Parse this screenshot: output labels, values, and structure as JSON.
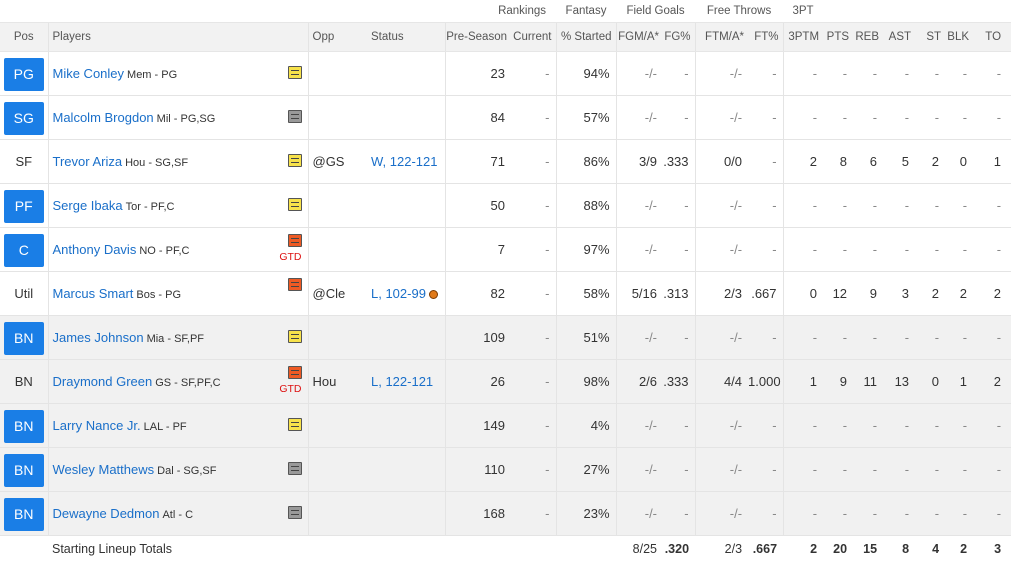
{
  "group_headers": {
    "rankings": "Rankings",
    "fantasy": "Fantasy",
    "field_goals": "Field Goals",
    "free_throws": "Free Throws",
    "three_pt": "3PT"
  },
  "columns": {
    "pos": "Pos",
    "players": "Players",
    "opp": "Opp",
    "status": "Status",
    "preseason": "Pre-Season",
    "current": "Current",
    "pct_started": "% Started",
    "fgma": "FGM/A*",
    "fgpct": "FG%",
    "ftma": "FTM/A*",
    "ftpct": "FT%",
    "threeptm": "3PTM",
    "pts": "PTS",
    "reb": "REB",
    "ast": "AST",
    "st": "ST",
    "blk": "BLK",
    "to": "TO"
  },
  "players": [
    {
      "pos": "PG",
      "pos_button": true,
      "bench": false,
      "name": "Mike Conley",
      "meta": "Mem - PG",
      "note": "yellow-note-icon",
      "gtd": "",
      "opp": "",
      "status": "",
      "game_icon": false,
      "preseason": "23",
      "current": "-",
      "started": "94%",
      "fgma": "-/-",
      "fgpct": "-",
      "ftma": "-/-",
      "ftpct": "-",
      "threeptm": "-",
      "pts": "-",
      "reb": "-",
      "ast": "-",
      "st": "-",
      "blk": "-",
      "to": "-"
    },
    {
      "pos": "SG",
      "pos_button": true,
      "bench": false,
      "name": "Malcolm Brogdon",
      "meta": "Mil - PG,SG",
      "note": "gray-note-icon",
      "gtd": "",
      "opp": "",
      "status": "",
      "game_icon": false,
      "preseason": "84",
      "current": "-",
      "started": "57%",
      "fgma": "-/-",
      "fgpct": "-",
      "ftma": "-/-",
      "ftpct": "-",
      "threeptm": "-",
      "pts": "-",
      "reb": "-",
      "ast": "-",
      "st": "-",
      "blk": "-",
      "to": "-"
    },
    {
      "pos": "SF",
      "pos_button": false,
      "bench": false,
      "name": "Trevor Ariza",
      "meta": "Hou - SG,SF",
      "note": "yellow-note-icon",
      "gtd": "",
      "opp": "@GS",
      "status": "W, 122-121",
      "game_icon": false,
      "preseason": "71",
      "current": "-",
      "started": "86%",
      "fgma": "3/9",
      "fgpct": ".333",
      "ftma": "0/0",
      "ftpct": "-",
      "threeptm": "2",
      "pts": "8",
      "reb": "6",
      "ast": "5",
      "st": "2",
      "blk": "0",
      "to": "1"
    },
    {
      "pos": "PF",
      "pos_button": true,
      "bench": false,
      "name": "Serge Ibaka",
      "meta": "Tor - PF,C",
      "note": "yellow-note-icon",
      "gtd": "",
      "opp": "",
      "status": "",
      "game_icon": false,
      "preseason": "50",
      "current": "-",
      "started": "88%",
      "fgma": "-/-",
      "fgpct": "-",
      "ftma": "-/-",
      "ftpct": "-",
      "threeptm": "-",
      "pts": "-",
      "reb": "-",
      "ast": "-",
      "st": "-",
      "blk": "-",
      "to": "-"
    },
    {
      "pos": "C",
      "pos_button": true,
      "bench": false,
      "name": "Anthony Davis",
      "meta": "NO - PF,C",
      "note": "orange-note-icon",
      "gtd": "GTD",
      "opp": "",
      "status": "",
      "game_icon": false,
      "preseason": "7",
      "current": "-",
      "started": "97%",
      "fgma": "-/-",
      "fgpct": "-",
      "ftma": "-/-",
      "ftpct": "-",
      "threeptm": "-",
      "pts": "-",
      "reb": "-",
      "ast": "-",
      "st": "-",
      "blk": "-",
      "to": "-"
    },
    {
      "pos": "Util",
      "pos_button": false,
      "bench": false,
      "name": "Marcus Smart",
      "meta": "Bos - PG",
      "note": "orange-note-icon",
      "gtd": "",
      "opp": "@Cle",
      "status": "L, 102-99",
      "game_icon": true,
      "preseason": "82",
      "current": "-",
      "started": "58%",
      "fgma": "5/16",
      "fgpct": ".313",
      "ftma": "2/3",
      "ftpct": ".667",
      "threeptm": "0",
      "pts": "12",
      "reb": "9",
      "ast": "3",
      "st": "2",
      "blk": "2",
      "to": "2"
    },
    {
      "pos": "BN",
      "pos_button": true,
      "bench": true,
      "name": "James Johnson",
      "meta": "Mia - SF,PF",
      "note": "yellow-note-icon",
      "gtd": "",
      "opp": "",
      "status": "",
      "game_icon": false,
      "preseason": "109",
      "current": "-",
      "started": "51%",
      "fgma": "-/-",
      "fgpct": "-",
      "ftma": "-/-",
      "ftpct": "-",
      "threeptm": "-",
      "pts": "-",
      "reb": "-",
      "ast": "-",
      "st": "-",
      "blk": "-",
      "to": "-"
    },
    {
      "pos": "BN",
      "pos_button": false,
      "bench": true,
      "name": "Draymond Green",
      "meta": "GS - SF,PF,C",
      "note": "orange-note-icon",
      "gtd": "GTD",
      "opp": "Hou",
      "status": "L, 122-121",
      "game_icon": false,
      "preseason": "26",
      "current": "-",
      "started": "98%",
      "fgma": "2/6",
      "fgpct": ".333",
      "ftma": "4/4",
      "ftpct": "1.000",
      "threeptm": "1",
      "pts": "9",
      "reb": "11",
      "ast": "13",
      "st": "0",
      "blk": "1",
      "to": "2"
    },
    {
      "pos": "BN",
      "pos_button": true,
      "bench": true,
      "name": "Larry Nance Jr.",
      "meta": "LAL - PF",
      "note": "yellow-note-icon",
      "gtd": "",
      "opp": "",
      "status": "",
      "game_icon": false,
      "preseason": "149",
      "current": "-",
      "started": "4%",
      "fgma": "-/-",
      "fgpct": "-",
      "ftma": "-/-",
      "ftpct": "-",
      "threeptm": "-",
      "pts": "-",
      "reb": "-",
      "ast": "-",
      "st": "-",
      "blk": "-",
      "to": "-"
    },
    {
      "pos": "BN",
      "pos_button": true,
      "bench": true,
      "name": "Wesley Matthews",
      "meta": "Dal - SG,SF",
      "note": "gray-note-icon",
      "gtd": "",
      "opp": "",
      "status": "",
      "game_icon": false,
      "preseason": "110",
      "current": "-",
      "started": "27%",
      "fgma": "-/-",
      "fgpct": "-",
      "ftma": "-/-",
      "ftpct": "-",
      "threeptm": "-",
      "pts": "-",
      "reb": "-",
      "ast": "-",
      "st": "-",
      "blk": "-",
      "to": "-"
    },
    {
      "pos": "BN",
      "pos_button": true,
      "bench": true,
      "name": "Dewayne Dedmon",
      "meta": "Atl - C",
      "note": "gray-note-icon",
      "gtd": "",
      "opp": "",
      "status": "",
      "game_icon": false,
      "preseason": "168",
      "current": "-",
      "started": "23%",
      "fgma": "-/-",
      "fgpct": "-",
      "ftma": "-/-",
      "ftpct": "-",
      "threeptm": "-",
      "pts": "-",
      "reb": "-",
      "ast": "-",
      "st": "-",
      "blk": "-",
      "to": "-"
    }
  ],
  "totals": {
    "label": "Starting Lineup Totals",
    "fgma": "8/25",
    "fgpct": ".320",
    "ftma": "2/3",
    "ftpct": ".667",
    "threeptm": "2",
    "pts": "20",
    "reb": "15",
    "ast": "8",
    "st": "4",
    "blk": "2",
    "to": "3"
  },
  "colors": {
    "position_button": "#1a7ee6",
    "link": "#1a6fc9",
    "gtd": "#dd1111",
    "bench_row": "#f1f1f1",
    "header_row": "#f2f2f2"
  }
}
